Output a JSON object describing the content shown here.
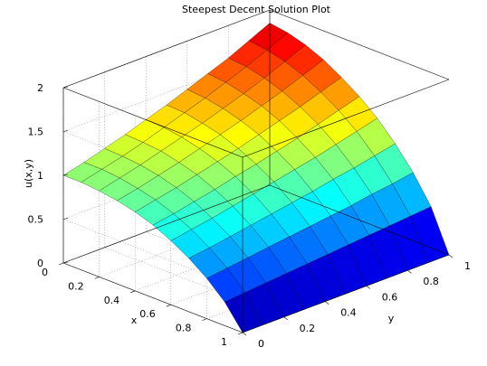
{
  "chart_data": {
    "type": "surface",
    "title": "Steepest Decent Solution Plot",
    "xlabel": "x",
    "ylabel": "y",
    "zlabel": "u(x,y)",
    "xlim": [
      0,
      1
    ],
    "ylim": [
      0,
      1
    ],
    "zlim": [
      0,
      2
    ],
    "x_ticks": [
      "0",
      "0.2",
      "0.4",
      "0.6",
      "0.8",
      "1"
    ],
    "y_ticks": [
      "0",
      "0.2",
      "0.4",
      "0.6",
      "0.8",
      "1"
    ],
    "z_ticks": [
      "0",
      "0.5",
      "1",
      "1.5",
      "2"
    ],
    "colormap": "jet",
    "grid": true,
    "x": [
      0,
      0.1,
      0.2,
      0.3,
      0.4,
      0.5,
      0.6,
      0.7,
      0.8,
      0.9,
      1.0
    ],
    "y": [
      0,
      0.1,
      0.2,
      0.3,
      0.4,
      0.5,
      0.6,
      0.7,
      0.8,
      0.9,
      1.0
    ],
    "z": [
      [
        1.0,
        1.06,
        1.13,
        1.2,
        1.28,
        1.36,
        1.45,
        1.54,
        1.63,
        1.74,
        1.85
      ],
      [
        1.0,
        1.06,
        1.12,
        1.19,
        1.27,
        1.35,
        1.43,
        1.52,
        1.61,
        1.71,
        1.82
      ],
      [
        0.98,
        1.04,
        1.1,
        1.17,
        1.24,
        1.31,
        1.39,
        1.47,
        1.56,
        1.66,
        1.76
      ],
      [
        0.95,
        1.0,
        1.06,
        1.12,
        1.19,
        1.26,
        1.33,
        1.41,
        1.49,
        1.58,
        1.67
      ],
      [
        0.9,
        0.95,
        1.0,
        1.06,
        1.12,
        1.18,
        1.25,
        1.32,
        1.39,
        1.47,
        1.55
      ],
      [
        0.83,
        0.87,
        0.92,
        0.97,
        1.03,
        1.08,
        1.14,
        1.2,
        1.27,
        1.34,
        1.41
      ],
      [
        0.73,
        0.77,
        0.81,
        0.86,
        0.91,
        0.96,
        1.01,
        1.06,
        1.12,
        1.18,
        1.24
      ],
      [
        0.61,
        0.64,
        0.68,
        0.72,
        0.76,
        0.8,
        0.84,
        0.89,
        0.93,
        0.98,
        1.03
      ],
      [
        0.46,
        0.49,
        0.52,
        0.55,
        0.58,
        0.61,
        0.64,
        0.67,
        0.71,
        0.74,
        0.78
      ],
      [
        0.27,
        0.29,
        0.31,
        0.33,
        0.35,
        0.37,
        0.39,
        0.41,
        0.43,
        0.45,
        0.47
      ],
      [
        0.0,
        0.0,
        0.0,
        0.0,
        0.0,
        0.0,
        0.0,
        0.0,
        0.0,
        0.0,
        0.0
      ]
    ]
  }
}
